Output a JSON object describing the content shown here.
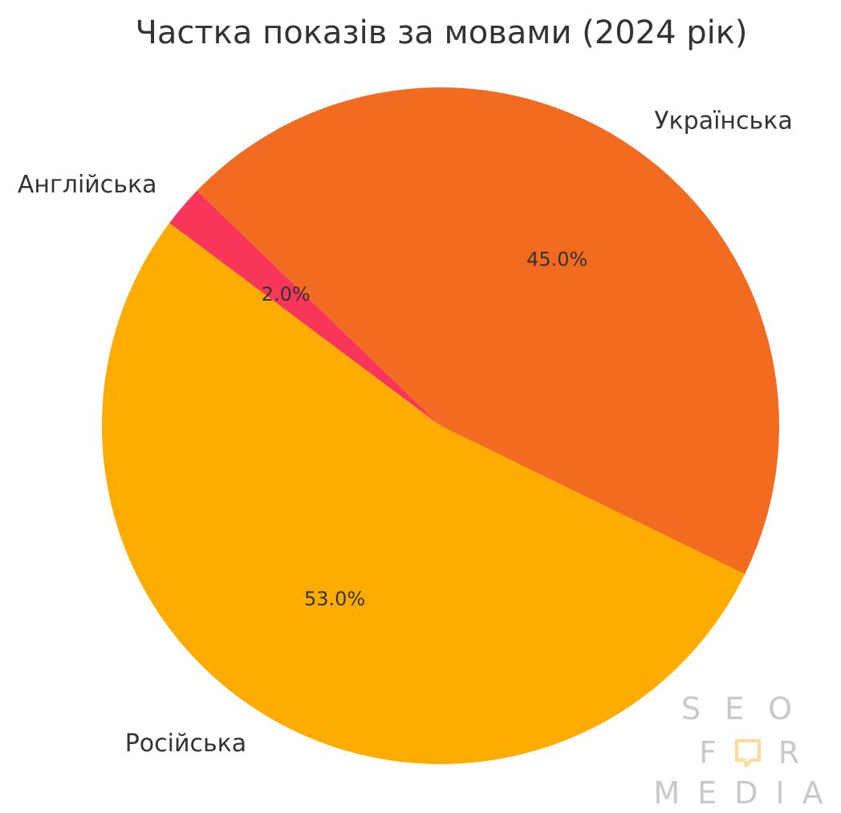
{
  "chart_data": {
    "type": "pie",
    "title": "Частка показів за мовами (2024 рік)",
    "start_angle_deg": 136,
    "direction": "counterclockwise",
    "slices": [
      {
        "label": "Англійська",
        "value": 2.0,
        "pct_label": "2.0%",
        "color": "#f7365a"
      },
      {
        "label": "Російська",
        "value": 53.0,
        "pct_label": "53.0%",
        "color": "#fead00"
      },
      {
        "label": "Українська",
        "value": 45.0,
        "pct_label": "45.0%",
        "color": "#f26b21"
      }
    ]
  },
  "watermark": {
    "line1": "SEO",
    "line2_left": "F",
    "line2_right": "R",
    "line3": "MEDIA"
  }
}
